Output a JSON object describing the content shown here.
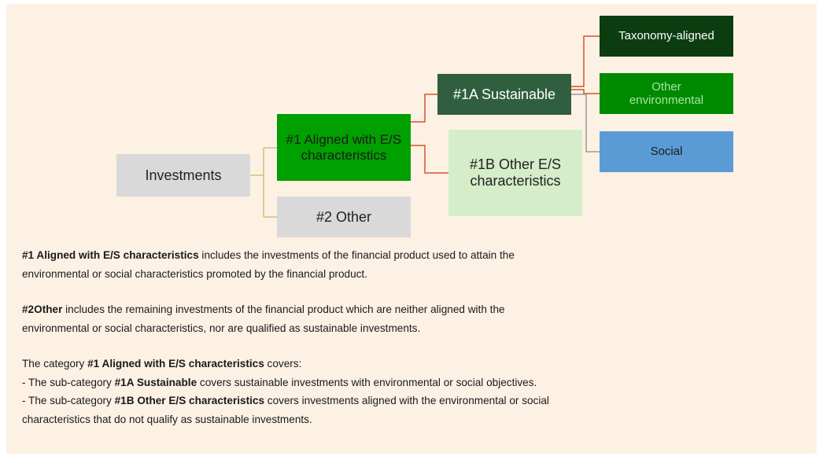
{
  "nodes": [
    {
      "id": "investments",
      "label": "Investments"
    },
    {
      "id": "aligned",
      "label": "#1 Aligned with E/S characteristics"
    },
    {
      "id": "other",
      "label": "#2 Other"
    },
    {
      "id": "sustainable",
      "label": "#1A Sustainable"
    },
    {
      "id": "other-es",
      "label": "#1B Other E/S characteristics"
    },
    {
      "id": "taxonomy",
      "label": "Taxonomy-aligned"
    },
    {
      "id": "other-env",
      "label": "Other environmental"
    },
    {
      "id": "social",
      "label": "Social"
    }
  ],
  "paragraphs": [
    {
      "lines": [
        [
          {
            "text": "#1 Aligned with E/S characteristics",
            "bold": true
          },
          {
            "text": " includes the investments of the financial product used to attain the",
            "bold": false
          }
        ],
        [
          {
            "text": "environmental or social characteristics promoted by the financial product.",
            "bold": false
          }
        ]
      ]
    },
    {
      "lines": [
        [
          {
            "text": "#2Other",
            "bold": true
          },
          {
            "text": " includes the remaining investments of the financial product which are neither aligned with the",
            "bold": false
          }
        ],
        [
          {
            "text": "environmental or social characteristics, nor are qualified as sustainable investments.",
            "bold": false
          }
        ]
      ]
    },
    {
      "lines": [
        [
          {
            "text": "The category ",
            "bold": false
          },
          {
            "text": "#1 Aligned with E/S characteristics",
            "bold": true
          },
          {
            "text": " covers:",
            "bold": false
          }
        ],
        [
          {
            "text": "- The sub-category ",
            "bold": false
          },
          {
            "text": "#1A Sustainable",
            "bold": true
          },
          {
            "text": " covers sustainable investments with environmental or social objectives.",
            "bold": false
          }
        ],
        [
          {
            "text": "- The sub-category ",
            "bold": false
          },
          {
            "text": "#1B Other E/S characteristics",
            "bold": true
          },
          {
            "text": " covers investments aligned with the environmental or social",
            "bold": false
          }
        ],
        [
          {
            "text": "characteristics that do not qualify as sustainable investments.",
            "bold": false
          }
        ]
      ]
    }
  ]
}
